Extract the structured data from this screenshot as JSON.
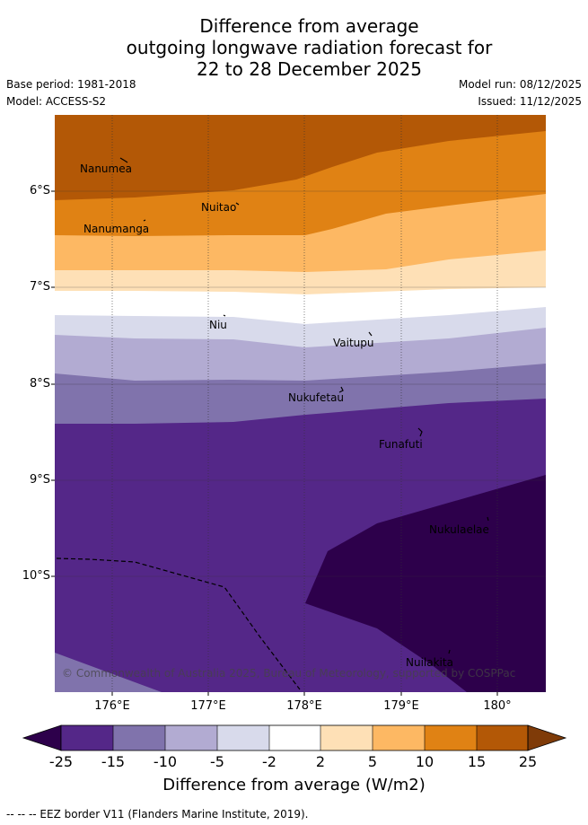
{
  "title": {
    "line1": "Difference from average",
    "line2": "outgoing longwave radiation forecast for",
    "line3": "22 to 28 December 2025"
  },
  "meta": {
    "base_period": "Base period: 1981-2018",
    "model": "Model: ACCESS-S2",
    "model_run": "Model run: 08/12/2025",
    "issued": "Issued: 11/12/2025"
  },
  "axes": {
    "lat_labels": [
      "6°S",
      "7°S",
      "8°S",
      "9°S",
      "10°S"
    ],
    "lon_labels": [
      "176°E",
      "177°E",
      "178°E",
      "179°E",
      "180°"
    ]
  },
  "islands": [
    "Nanumea",
    "Nuitao",
    "Nanumanga",
    "Niu",
    "Vaitupu",
    "Nukufetau",
    "Funafuti",
    "Nukulaelae",
    "Nuilakita"
  ],
  "copyright": "© Commonwealth of Australia 2025, Bureau of Meteorology, supported by COSPPac",
  "colorbar": {
    "title": "Difference from average (W/m2)",
    "ticks": [
      "-25",
      "-15",
      "-10",
      "-5",
      "-2",
      "2",
      "5",
      "10",
      "15",
      "25"
    ],
    "colors": {
      "below": "#2d004b",
      "c1": "#542788",
      "c2": "#8073ac",
      "c3": "#b2abd2",
      "c4": "#d8daeb",
      "c5": "#ffffff",
      "c6": "#fee0b6",
      "c7": "#fdb863",
      "c8": "#e08214",
      "c9": "#b35806",
      "above": "#7f3b08"
    }
  },
  "footer": "--  --  -- EEZ border V11 (Flanders Marine Institute, 2019)."
}
